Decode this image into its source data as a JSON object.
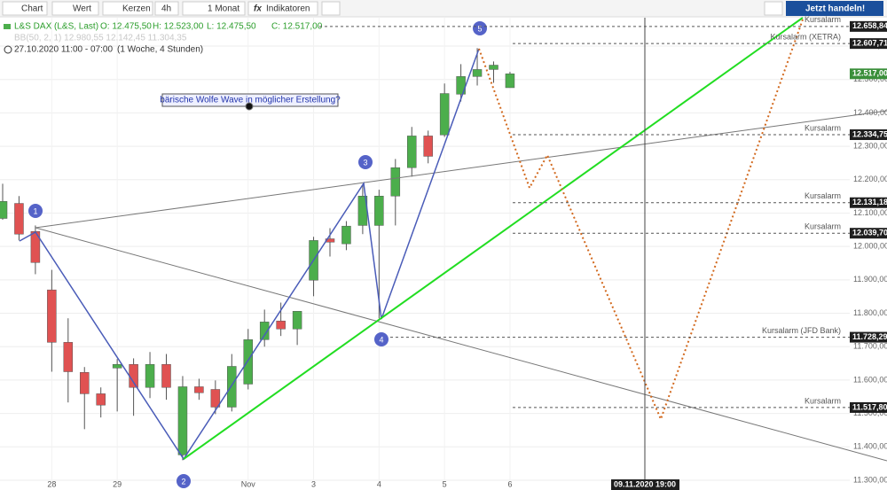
{
  "toolbar": {
    "chart": "Chart",
    "value": "Wert",
    "candles": "Kerzen",
    "interval": "4h",
    "range": "1 Monat",
    "indicators": "Indikatoren",
    "trade": "Jetzt handeln!"
  },
  "chart_data": {
    "type": "candlestick",
    "title": "L&S DAX (L&S, Last)",
    "ohlc": [
      "O: 12.475,50",
      "H: 12.523,00",
      "L: 12.475,50",
      "C: 12.517,00"
    ],
    "indicator": "BB(50, 2, 1) 12.980,55 12.142,45 11.304,35",
    "period": "27.10.2020 11:00 - 07:00",
    "period_detail": "(1 Woche, 4 Stunden)",
    "annotation": "bärische Wolfe Wave in möglicher Erstellung?",
    "wave_points": [
      "1",
      "2",
      "3",
      "4",
      "5"
    ],
    "crosshair_label": "09.11.2020 19:00",
    "categories": [
      null,
      null,
      null,
      "28",
      null,
      null,
      null,
      "29",
      null,
      null,
      null,
      null,
      null,
      null,
      null,
      "Nov",
      null,
      null,
      null,
      "3",
      null,
      null,
      null,
      "4",
      null,
      null,
      null,
      "5",
      null,
      null,
      null,
      "6"
    ],
    "open": [
      12084,
      12129,
      12045,
      11870,
      11713,
      11623,
      11559,
      11636,
      11647,
      11578,
      11647,
      11376,
      11580,
      11572,
      11519,
      11588,
      11721,
      11777,
      11753,
      11899,
      12023,
      12008,
      12063,
      12063,
      12151,
      12236,
      12331,
      12334,
      12456,
      12509,
      12530,
      12475.5
    ],
    "high": [
      12188,
      12151,
      12063,
      11930,
      11785,
      11639,
      11578,
      11663,
      11665,
      11684,
      11678,
      11612,
      11604,
      11599,
      11678,
      11753,
      11811,
      11832,
      11806,
      12029,
      12055,
      12076,
      12183,
      12170,
      12262,
      12358,
      12347,
      12488,
      12546,
      12594,
      12554,
      12523
    ],
    "low": [
      12080,
      12018,
      11917,
      11625,
      11533,
      11453,
      11488,
      11506,
      11493,
      11546,
      11541,
      11360,
      11541,
      11498,
      11506,
      11572,
      11700,
      11732,
      11705,
      11851,
      11970,
      11989,
      12037,
      11785,
      12063,
      12209,
      12249,
      12328,
      12434,
      12482,
      12490,
      12475.5
    ],
    "close": [
      12135,
      12037,
      11952,
      11713,
      11625,
      11559,
      11525,
      11647,
      11578,
      11647,
      11578,
      11580,
      11562,
      11519,
      11641,
      11721,
      11774,
      11753,
      11806,
      12018,
      12013,
      12061,
      12151,
      12151,
      12236,
      12331,
      12270,
      12458,
      12509,
      12530,
      12543,
      12517
    ],
    "up_color": "#4cae4c",
    "down_color": "#e05252",
    "ylim": [
      11300,
      12685
    ],
    "yticks": [
      {
        "value": 11300,
        "label": "11.300,00"
      },
      {
        "value": 11400,
        "label": "11.400,00"
      },
      {
        "value": 11500,
        "label": "11.500,00"
      },
      {
        "value": 11600,
        "label": "11.600,00"
      },
      {
        "value": 11700,
        "label": "11.700,00"
      },
      {
        "value": 11800,
        "label": "11.800,00"
      },
      {
        "value": 11900,
        "label": "11.900,00"
      },
      {
        "value": 12000,
        "label": "12.000,00"
      },
      {
        "value": 12100,
        "label": "12.100,00"
      },
      {
        "value": 12200,
        "label": "12.200,00"
      },
      {
        "value": 12300,
        "label": "12.300,00"
      },
      {
        "value": 12400,
        "label": "12.400,00"
      },
      {
        "value": 12500,
        "label": "12.500,00"
      },
      {
        "value": 12600,
        "label": "12.600,00"
      }
    ],
    "grid": true,
    "last_price_label": "12.517,00",
    "alerts": [
      {
        "name": "Kursalarm",
        "value": 12658.84,
        "value_label": "12.658,84"
      },
      {
        "name": "Kursalarm (XETRA)",
        "value": 12607.71,
        "value_label": "12.607,71"
      },
      {
        "name": "Kursalarm",
        "value": 12334.75,
        "value_label": "12.334,75"
      },
      {
        "name": "Kursalarm",
        "value": 12131.18,
        "value_label": "12.131,18"
      },
      {
        "name": "Kursalarm",
        "value": 12039.7,
        "value_label": "12.039,70"
      },
      {
        "name": "Kursalarm (JFD Bank)",
        "value": 11728.29,
        "value_label": "11.728,29"
      },
      {
        "name": "Kursalarm",
        "value": 11517.8,
        "value_label": "11.517,80"
      }
    ]
  }
}
